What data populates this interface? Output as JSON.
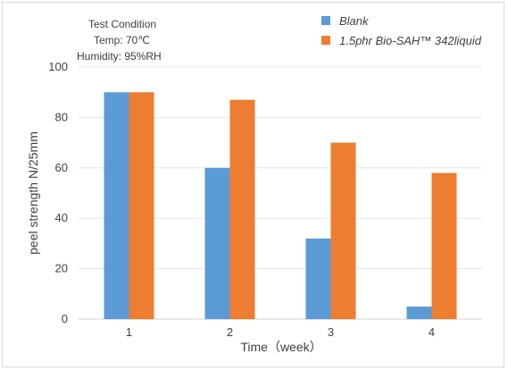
{
  "condition": {
    "heading": "Test Condition",
    "temp": "Temp: 70℃",
    "humidity": "Humidity: 95%RH"
  },
  "chart_data": {
    "type": "bar",
    "categories": [
      "1",
      "2",
      "3",
      "4"
    ],
    "series": [
      {
        "name": "Blank",
        "color": "#5b9bd5",
        "values": [
          90,
          60,
          32,
          5
        ]
      },
      {
        "name": "1.5phr Bio-SAH™ 342liquid",
        "color": "#ed7d31",
        "values": [
          90,
          87,
          70,
          58
        ]
      }
    ],
    "xlabel": "Time（week）",
    "ylabel": "peel strength N/25mm",
    "ylim": [
      0,
      100
    ],
    "yticks": [
      "0",
      "20",
      "40",
      "60",
      "80",
      "100"
    ],
    "grid": true,
    "legend_position": "top-right"
  }
}
